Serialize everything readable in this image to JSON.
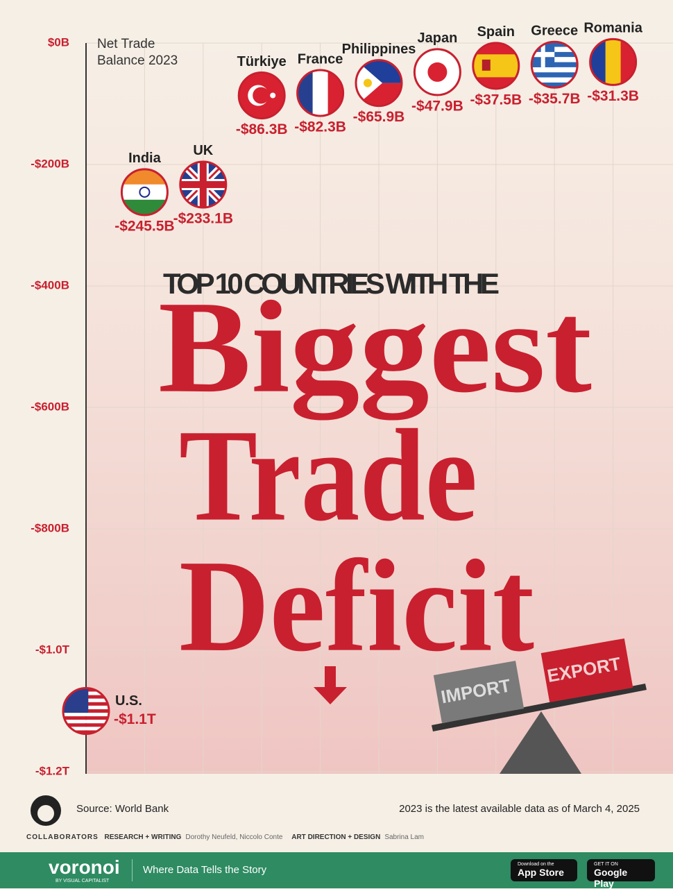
{
  "chart_data": {
    "type": "dot",
    "title_small": "TOP 10 COUNTRIES WITH THE",
    "title_lines": [
      "Biggest",
      "Trade",
      "Deficit"
    ],
    "y_label": "Net Trade Balance 2023",
    "categories": [
      "U.S.",
      "India",
      "UK",
      "Türkiye",
      "France",
      "Philippines",
      "Japan",
      "Spain",
      "Greece",
      "Romania"
    ],
    "values": [
      -1100,
      -245.5,
      -233.1,
      -86.3,
      -82.3,
      -65.9,
      -47.9,
      -37.5,
      -35.7,
      -31.3
    ],
    "value_labels": [
      "-$1.1T",
      "-$245.5B",
      "-$233.1B",
      "-$86.3B",
      "-$82.3B",
      "-$65.9B",
      "-$47.9B",
      "-$37.5B",
      "-$35.7B",
      "-$31.3B"
    ],
    "ylim": [
      -1200,
      0
    ],
    "yticks": [
      {
        "value": 0,
        "label": "$0B"
      },
      {
        "value": -200,
        "label": "-$200B"
      },
      {
        "value": -400,
        "label": "-$400B"
      },
      {
        "value": -600,
        "label": "-$600B"
      },
      {
        "value": -800,
        "label": "-$800B"
      },
      {
        "value": -1000,
        "label": "-$1.0T"
      },
      {
        "value": -1200,
        "label": "-$1.2T"
      }
    ],
    "grid": true,
    "illustration_labels": [
      "IMPORT",
      "EXPORT"
    ]
  },
  "footer": {
    "source": "Source: World Bank",
    "note": "2023 is the latest available data as of March 4, 2025",
    "collaborators": "COLLABORATORS",
    "research_label": "RESEARCH + WRITING",
    "research": "Dorothy Neufeld, Niccolo Conte",
    "design_label": "ART DIRECTION + DESIGN",
    "design": "Sabrina Lam",
    "brand": "voronoi",
    "brand_sub": "BY VISUAL CAPITALIST",
    "tagline": "Where Data Tells the Story",
    "app_store_top": "Download on the",
    "app_store": "App Store",
    "google_top": "GET IT ON",
    "google": "Google Play"
  }
}
